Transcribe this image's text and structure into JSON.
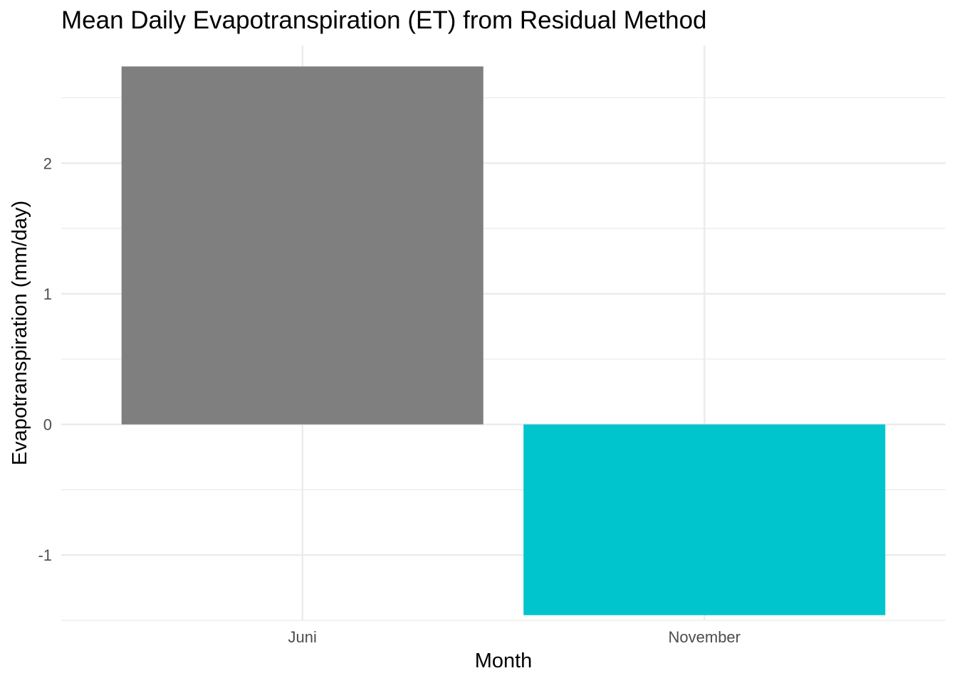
{
  "chart_data": {
    "type": "bar",
    "title": "Mean Daily Evapotranspiration (ET) from Residual Method",
    "xlabel": "Month",
    "ylabel": "Evapotranspiration (mm/day)",
    "categories": [
      "Juni",
      "November"
    ],
    "values": [
      2.74,
      -1.46
    ],
    "colors": [
      "#7f7f7f",
      "#00c5cd"
    ],
    "ylim": [
      -1.5,
      2.9
    ],
    "y_ticks": [
      -1,
      0,
      1,
      2
    ],
    "y_tick_labels": [
      "-1",
      "0",
      "1",
      "2"
    ],
    "grid": true,
    "legend": "none"
  }
}
